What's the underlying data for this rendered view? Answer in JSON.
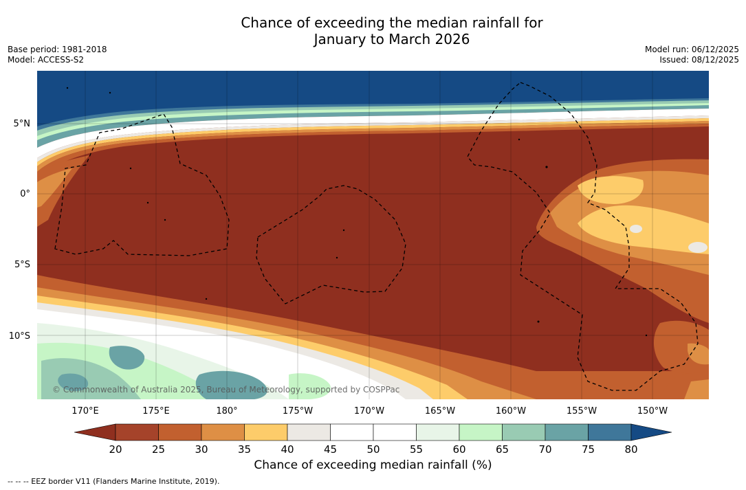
{
  "title": {
    "line1": "Chance of exceeding the median rainfall for",
    "line2": "January to March 2026"
  },
  "meta": {
    "base_period": "Base period: 1981-2018",
    "model": "Model: ACCESS-S2",
    "model_run": "Model run: 06/12/2025",
    "issued": "Issued: 08/12/2025"
  },
  "map": {
    "latitude_labels": [
      "5°N",
      "0°",
      "5°S",
      "10°S"
    ],
    "longitude_labels": [
      "170°E",
      "175°E",
      "180°",
      "175°W",
      "170°W",
      "165°W",
      "160°W",
      "155°W",
      "150°W"
    ],
    "copyright": "© Commonwealth of Australia 2025, Bureau of Meteorology, supported by COSPPac"
  },
  "colorbar": {
    "ticks": [
      "20",
      "25",
      "30",
      "35",
      "40",
      "45",
      "50",
      "55",
      "60",
      "65",
      "70",
      "75",
      "80"
    ],
    "colors": [
      "#8f2f1f",
      "#a5432a",
      "#c2602f",
      "#de8f45",
      "#fdcc6a",
      "#ece9e4",
      "#ffffff",
      "#ffffff",
      "#e8f5e8",
      "#c6f5c6",
      "#99cbb3",
      "#6aa3a5",
      "#3f779a",
      "#154a84"
    ],
    "label": "Chance of exceeding median rainfall (%)"
  },
  "footer": {
    "legend": "-- -- -- EEZ border V11 (Flanders Marine Institute, 2019)."
  }
}
